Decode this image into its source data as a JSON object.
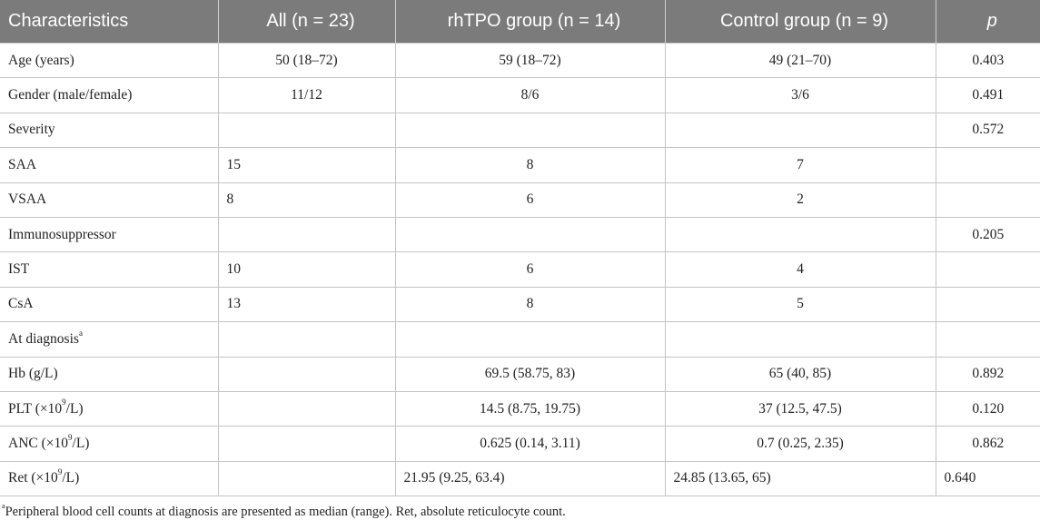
{
  "table": {
    "headers": [
      "Characteristics",
      "All (n = 23)",
      "rhTPO group (n = 14)",
      "Control group (n = 9)",
      "p"
    ],
    "rows": [
      {
        "label": "Age (years)",
        "all": "50 (18–72)",
        "rhtpo": "59 (18–72)",
        "control": "49 (21–70)",
        "p": "0.403"
      },
      {
        "label": "Gender (male/female)",
        "all": "11/12",
        "rhtpo": "8/6",
        "control": "3/6",
        "p": "0.491"
      },
      {
        "label": "Severity",
        "all": "",
        "rhtpo": "",
        "control": "",
        "p": "0.572"
      },
      {
        "label": "SAA",
        "all": "15",
        "rhtpo": "8",
        "control": "7",
        "p": ""
      },
      {
        "label": "VSAA",
        "all": "8",
        "rhtpo": "6",
        "control": "2",
        "p": ""
      },
      {
        "label": "Immunosuppressor",
        "all": "",
        "rhtpo": "",
        "control": "",
        "p": "0.205"
      },
      {
        "label": "IST",
        "all": "10",
        "rhtpo": "6",
        "control": "4",
        "p": ""
      },
      {
        "label": "CsA",
        "all": "13",
        "rhtpo": "8",
        "control": "5",
        "p": ""
      },
      {
        "label": "At diagnosis",
        "label_sup": "a",
        "all": "",
        "rhtpo": "",
        "control": "",
        "p": ""
      },
      {
        "label": "Hb (g/L)",
        "all": "",
        "rhtpo": "69.5 (58.75, 83)",
        "control": "65 (40, 85)",
        "p": "0.892"
      },
      {
        "label_pre": "PLT (×10",
        "label_sup": "9",
        "label_post": "/L)",
        "all": "",
        "rhtpo": "14.5 (8.75, 19.75)",
        "control": "37 (12.5, 47.5)",
        "p": "0.120"
      },
      {
        "label_pre": "ANC (×10",
        "label_sup": "9",
        "label_post": "/L)",
        "all": "",
        "rhtpo": "0.625 (0.14, 3.11)",
        "control": "0.7 (0.25, 2.35)",
        "p": "0.862"
      },
      {
        "label_pre": "Ret (×10",
        "label_sup": "9",
        "label_post": "/L)",
        "all": "",
        "rhtpo": "21.95 (9.25, 63.4)",
        "control": "24.85 (13.65, 65)",
        "p": "0.640"
      }
    ]
  },
  "footnote": {
    "marker": "a",
    "text": "Peripheral blood cell counts at diagnosis are presented as median (range). Ret, absolute reticulocyte count."
  }
}
